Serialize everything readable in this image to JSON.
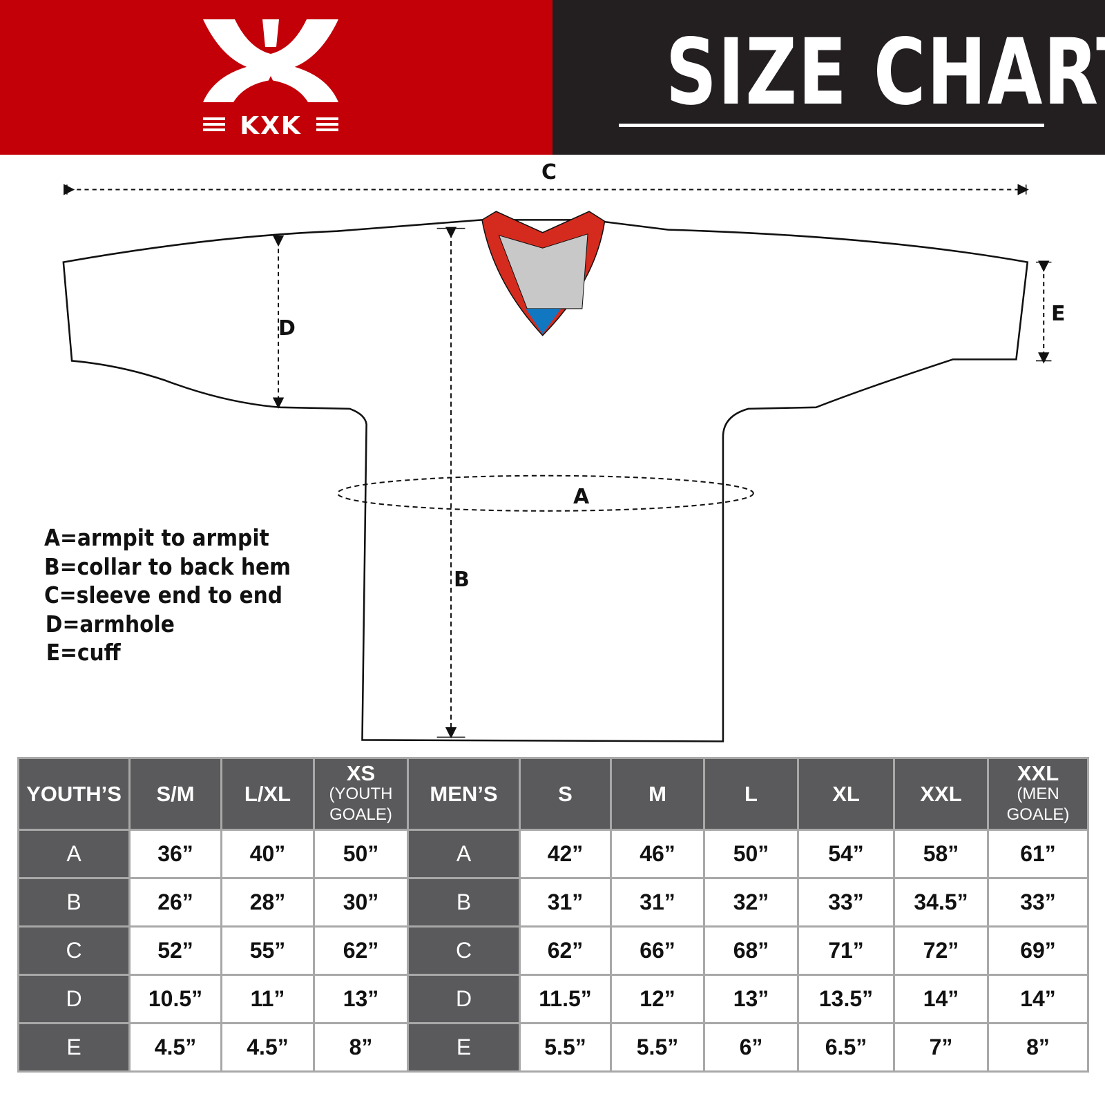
{
  "header": {
    "brand": "KXK",
    "title": "SIZE CHART",
    "colors": {
      "brand_red": "#c30008",
      "dark": "#231f20"
    }
  },
  "diagram": {
    "labels": {
      "a": "A",
      "b": "B",
      "c": "C",
      "d": "D",
      "e": "E"
    },
    "colors": {
      "collar": "#d52b1e",
      "insert": "#c8c8c8",
      "tip": "#1177c0"
    }
  },
  "legend": [
    "A=armpit to armpit",
    "B=collar to back hem",
    "C=sleeve end to end",
    "D=armhole",
    "E=cuff"
  ],
  "table": {
    "youth_header": "YOUTH’S",
    "men_header": "MEN’S",
    "youth_sizes": [
      {
        "label": "S/M",
        "sub": ""
      },
      {
        "label": "L/XL",
        "sub": ""
      },
      {
        "label": "XS",
        "sub": "(YOUTH GOALE)"
      }
    ],
    "men_sizes": [
      {
        "label": "S",
        "sub": ""
      },
      {
        "label": "M",
        "sub": ""
      },
      {
        "label": "L",
        "sub": ""
      },
      {
        "label": "XL",
        "sub": ""
      },
      {
        "label": "XXL",
        "sub": ""
      },
      {
        "label": "XXL",
        "sub": "(MEN GOALE)"
      }
    ],
    "rows": [
      {
        "label": "A",
        "youth": [
          "36”",
          "40”",
          "50”"
        ],
        "men": [
          "42”",
          "46”",
          "50”",
          "54”",
          "58”",
          "61”"
        ]
      },
      {
        "label": "B",
        "youth": [
          "26”",
          "28”",
          "30”"
        ],
        "men": [
          "31”",
          "31”",
          "32”",
          "33”",
          "34.5”",
          "33”"
        ]
      },
      {
        "label": "C",
        "youth": [
          "52”",
          "55”",
          "62”"
        ],
        "men": [
          "62”",
          "66”",
          "68”",
          "71”",
          "72”",
          "69”"
        ]
      },
      {
        "label": "D",
        "youth": [
          "10.5”",
          "11”",
          "13”"
        ],
        "men": [
          "11.5”",
          "12”",
          "13”",
          "13.5”",
          "14”",
          "14”"
        ]
      },
      {
        "label": "E",
        "youth": [
          "4.5”",
          "4.5”",
          "8”"
        ],
        "men": [
          "5.5”",
          "5.5”",
          "6”",
          "6.5”",
          "7”",
          "8”"
        ]
      }
    ]
  }
}
